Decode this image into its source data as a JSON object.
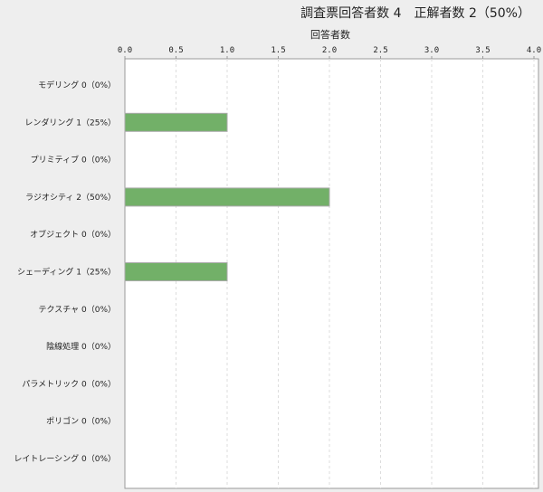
{
  "chart_data": {
    "type": "bar",
    "orientation": "horizontal",
    "title": "調査票回答者数 4　正解者数 2（50%）",
    "xlabel": "回答者数",
    "ylabel": "",
    "xlim": [
      0,
      4.0
    ],
    "xticks": [
      "0.0",
      "0.5",
      "1.0",
      "1.5",
      "2.0",
      "2.5",
      "3.0",
      "3.5",
      "4.0"
    ],
    "grid": true,
    "categories": [
      "モデリング 0（0%）",
      "レンダリング 1（25%）",
      "プリミティブ 0（0%）",
      "ラジオシティ 2（50%）",
      "オブジェクト 0（0%）",
      "シェーディング 1（25%）",
      "テクスチャ 0（0%）",
      "陰線処理 0（0%）",
      "パラメトリック 0（0%）",
      "ポリゴン 0（0%）",
      "レイトレーシング 0（0%）"
    ],
    "values": [
      0,
      1,
      0,
      2,
      0,
      1,
      0,
      0,
      0,
      0,
      0
    ],
    "bar_color": "#72b068"
  }
}
